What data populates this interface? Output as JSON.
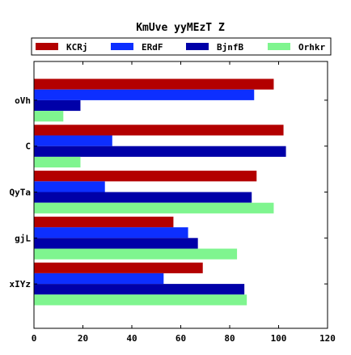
{
  "chart_data": {
    "type": "bar",
    "orientation": "horizontal",
    "title": "KmUve yyMEzT Z",
    "xlabel": "",
    "ylabel": "",
    "xlim": [
      0,
      120
    ],
    "xticks": [
      0,
      20,
      40,
      60,
      80,
      100,
      120
    ],
    "grid": false,
    "legend_position": "top",
    "categories": [
      "oVh",
      "C",
      "QyTa",
      "gjL",
      "xIYz"
    ],
    "series": [
      {
        "name": "KCRj",
        "color": "#b30000",
        "values": [
          98,
          102,
          91,
          57,
          69
        ]
      },
      {
        "name": "ERdF",
        "color": "#0d2fff",
        "values": [
          90,
          32,
          29,
          63,
          53
        ]
      },
      {
        "name": "BjnfB",
        "color": "#0000a8",
        "values": [
          19,
          103,
          89,
          67,
          86
        ]
      },
      {
        "name": "Orhkr",
        "color": "#7ff58f",
        "values": [
          12,
          19,
          98,
          83,
          87
        ]
      }
    ]
  }
}
